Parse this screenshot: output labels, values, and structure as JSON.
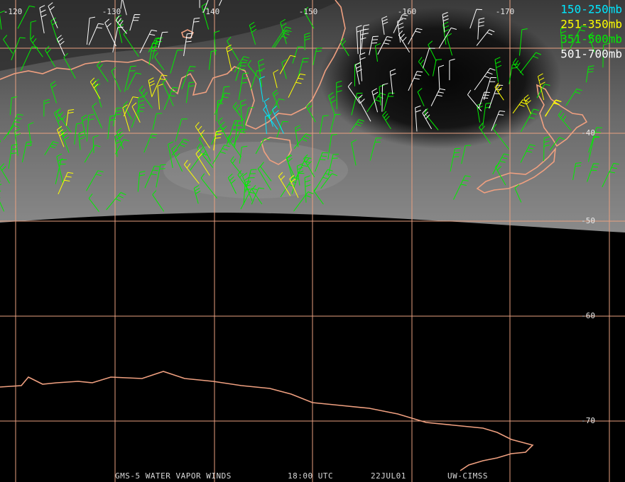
{
  "map": {
    "lon_labels": [
      "-120",
      "-130",
      "-140",
      "-150",
      "-160",
      "-170"
    ],
    "lat_labels": [
      "-40",
      "-50",
      "-60",
      "-70"
    ],
    "legend": [
      {
        "label": "150-250mb",
        "color": "#00e8ff"
      },
      {
        "label": "251-350mb",
        "color": "#ffff00"
      },
      {
        "label": "351-500mb",
        "color": "#00ee00"
      },
      {
        "label": "501-700mb",
        "color": "#ffffff"
      }
    ],
    "footer": [
      "GMS-5 WATER VAPOR WINDS",
      "18:00 UTC",
      "22JUL01",
      "UW-CIMSS"
    ]
  }
}
